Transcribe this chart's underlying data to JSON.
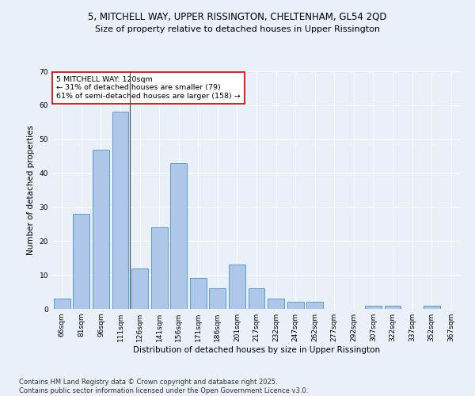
{
  "title1": "5, MITCHELL WAY, UPPER RISSINGTON, CHELTENHAM, GL54 2QD",
  "title2": "Size of property relative to detached houses in Upper Rissington",
  "xlabel": "Distribution of detached houses by size in Upper Rissington",
  "ylabel": "Number of detached properties",
  "categories": [
    "66sqm",
    "81sqm",
    "96sqm",
    "111sqm",
    "126sqm",
    "141sqm",
    "156sqm",
    "171sqm",
    "186sqm",
    "201sqm",
    "217sqm",
    "232sqm",
    "247sqm",
    "262sqm",
    "277sqm",
    "292sqm",
    "307sqm",
    "322sqm",
    "337sqm",
    "352sqm",
    "367sqm"
  ],
  "values": [
    3,
    28,
    47,
    58,
    12,
    24,
    43,
    9,
    6,
    13,
    6,
    3,
    2,
    2,
    0,
    0,
    1,
    1,
    0,
    1,
    0
  ],
  "bar_color": "#aec6e8",
  "bar_edge_color": "#5b9bd5",
  "annotation_text": "5 MITCHELL WAY: 120sqm\n← 31% of detached houses are smaller (79)\n61% of semi-detached houses are larger (158) →",
  "annotation_box_facecolor": "#ffffff",
  "annotation_box_edgecolor": "#cc0000",
  "vline_x": 3.5,
  "ylim": [
    0,
    70
  ],
  "yticks": [
    0,
    10,
    20,
    30,
    40,
    50,
    60,
    70
  ],
  "bg_color": "#eaf0f8",
  "footer_text": "Contains HM Land Registry data © Crown copyright and database right 2025.\nContains public sector information licensed under the Open Government Licence v3.0.",
  "title_fontsize": 8.5,
  "subtitle_fontsize": 8,
  "axis_label_fontsize": 7.5,
  "tick_fontsize": 6.5,
  "annotation_fontsize": 6.8,
  "footer_fontsize": 6
}
